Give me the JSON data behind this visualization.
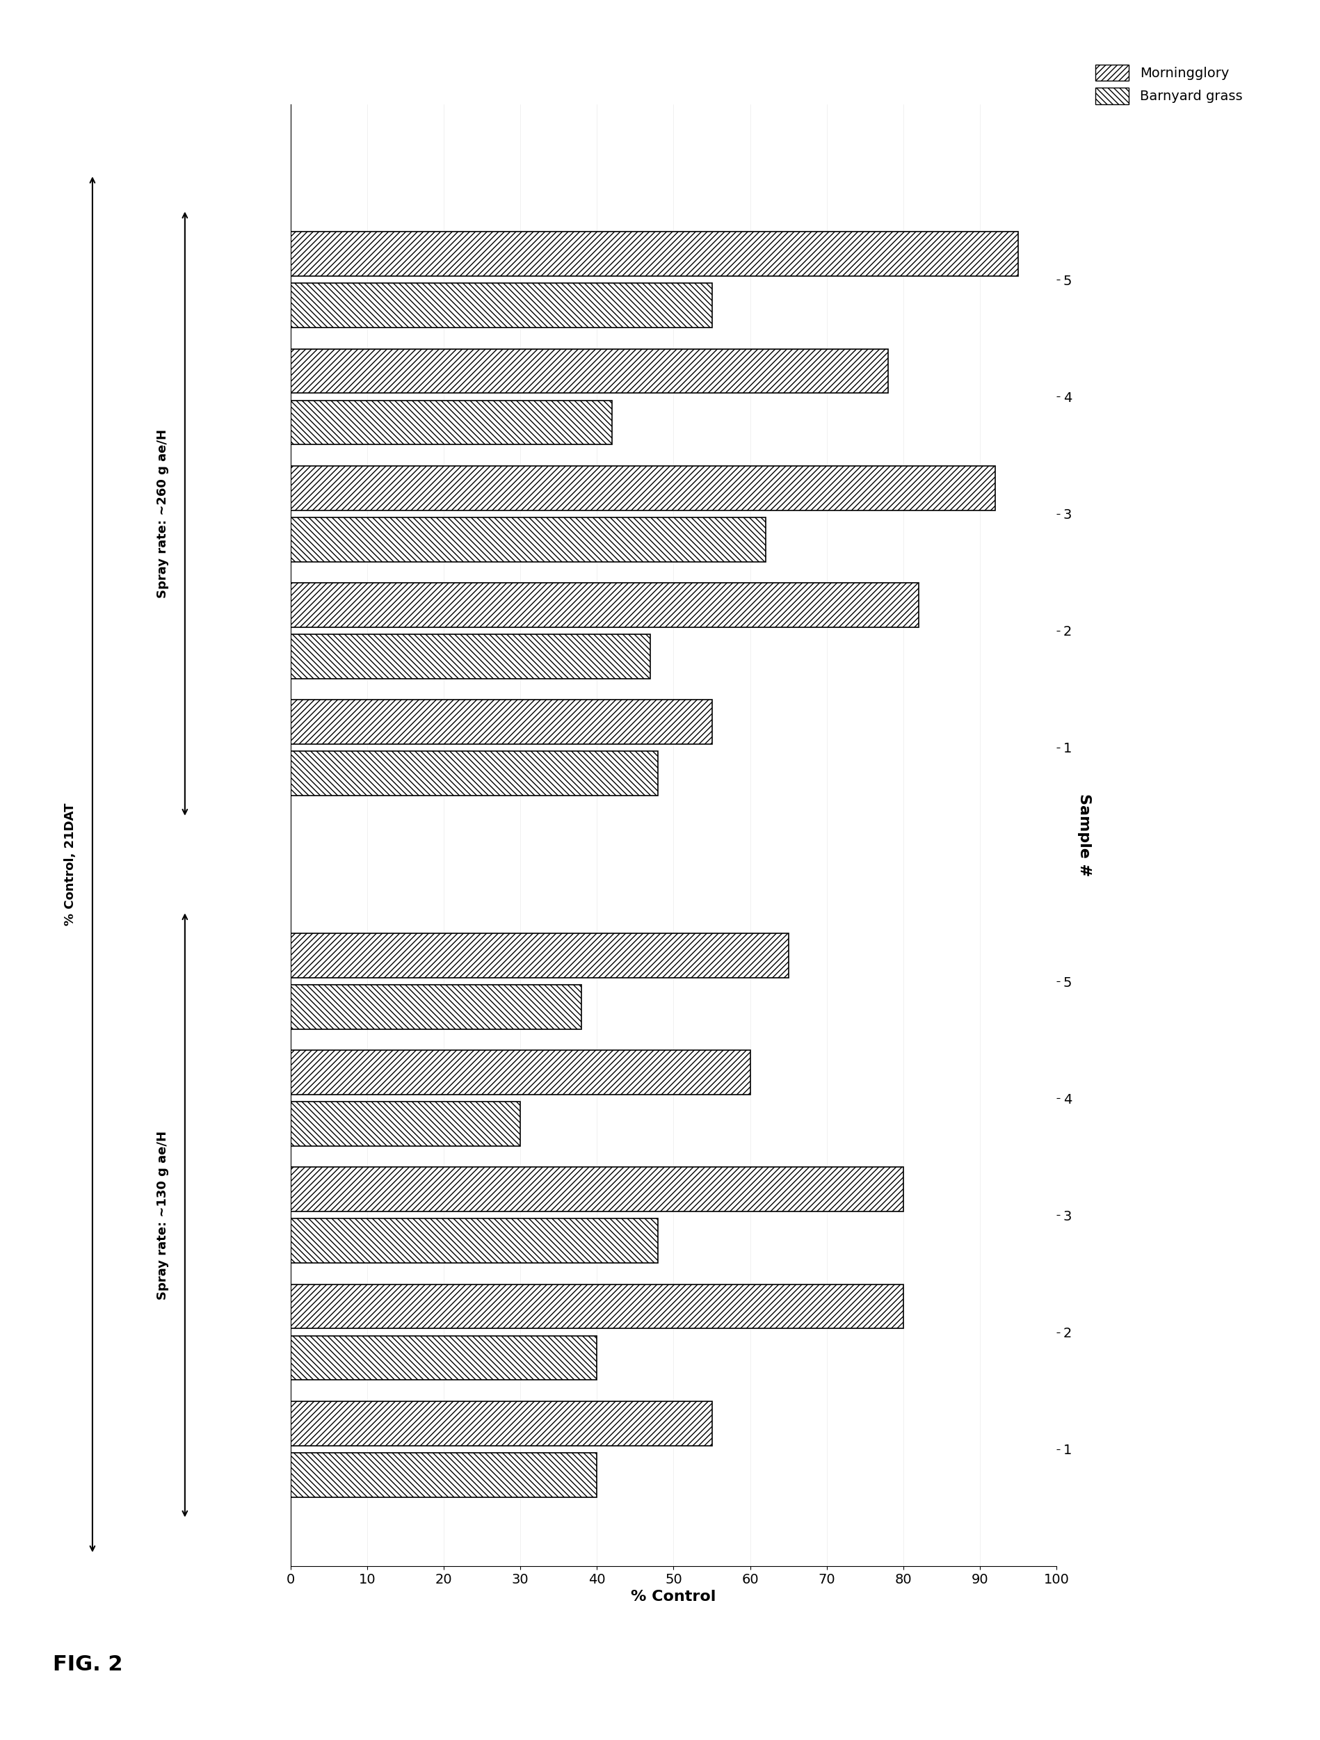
{
  "title": "FIG. 2",
  "xlabel": "% Control",
  "ylabel": "Sample #",
  "groups": [
    {
      "label": "Spray rate: ~130 g ae/H",
      "samples": [
        1,
        2,
        3,
        4,
        5
      ],
      "morningglory": [
        55,
        80,
        80,
        60,
        65
      ],
      "barnyard": [
        40,
        40,
        48,
        30,
        38
      ]
    },
    {
      "label": "Spray rate: ~260 g ae/H",
      "samples": [
        1,
        2,
        3,
        4,
        5
      ],
      "morningglory": [
        55,
        82,
        92,
        78,
        95
      ],
      "barnyard": [
        48,
        47,
        62,
        42,
        55
      ]
    }
  ],
  "legend_morningglory": "Morningglory",
  "legend_barnyard": "Barnyard grass",
  "annotation_label": "% Control, 21DAT",
  "xticks": [
    0,
    10,
    20,
    30,
    40,
    50,
    60,
    70,
    80,
    90,
    100
  ],
  "hatch_morningglory": "////",
  "hatch_barnyard": "\\\\\\\\",
  "bar_height": 0.38,
  "background_color": "#ffffff",
  "bar_edge_color": "#000000",
  "bar_face_color": "#ffffff"
}
